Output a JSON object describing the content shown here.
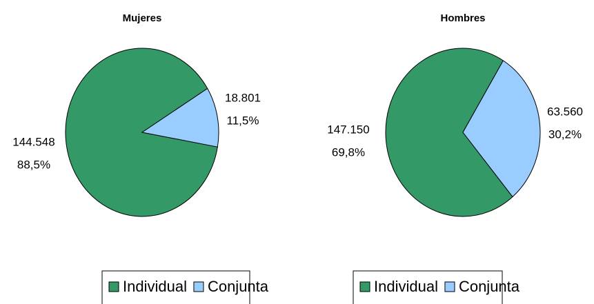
{
  "chart_data": [
    {
      "type": "pie",
      "title": "Mujeres",
      "categories": [
        "Individual",
        "Conjunta"
      ],
      "values": [
        144548,
        18801
      ],
      "value_labels": [
        "144.548",
        "18.801"
      ],
      "percents": [
        88.5,
        11.5
      ],
      "percent_labels": [
        "88,5%",
        "11,5%"
      ],
      "colors": [
        "#339966",
        "#99ccff"
      ]
    },
    {
      "type": "pie",
      "title": "Hombres",
      "categories": [
        "Individual",
        "Conjunta"
      ],
      "values": [
        147150,
        63560
      ],
      "value_labels": [
        "147.150",
        "63.560"
      ],
      "percents": [
        69.8,
        30.2
      ],
      "percent_labels": [
        "69,8%",
        "30,2%"
      ],
      "colors": [
        "#339966",
        "#99ccff"
      ]
    }
  ]
}
